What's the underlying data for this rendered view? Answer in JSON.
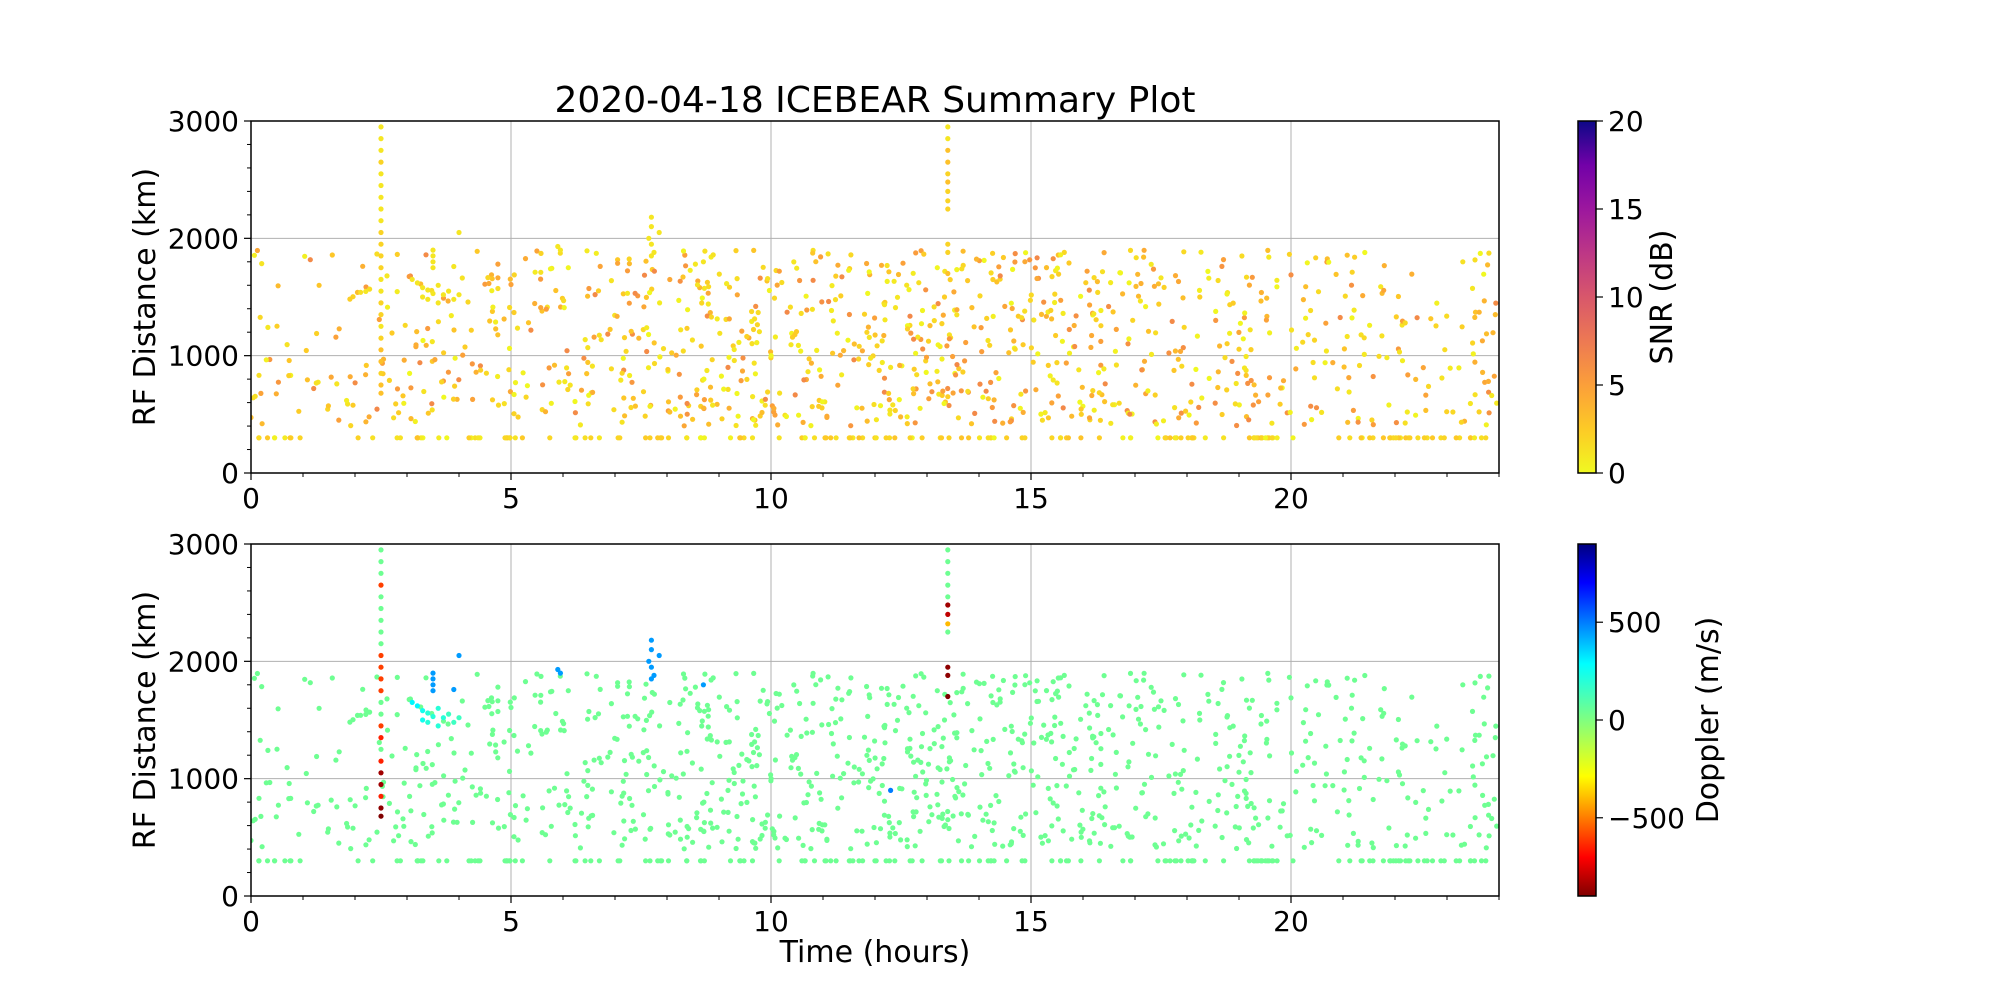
{
  "chart_data": [
    {
      "type": "scatter",
      "title": "2020-04-18 ICEBEAR Summary Plot",
      "xlabel": "",
      "ylabel": "RF Distance (km)",
      "xlim": [
        0,
        24
      ],
      "ylim": [
        0,
        3000
      ],
      "x_ticks": [
        "0",
        "5",
        "10",
        "15",
        "20"
      ],
      "y_ticks": [
        "0",
        "1000",
        "2000",
        "3000"
      ],
      "grid": true,
      "color_variable": "snr",
      "colorbar": {
        "label": "SNR (dB)",
        "colormap": "plasma_r",
        "range": [
          0,
          20
        ],
        "ticks": [
          "0",
          "5",
          "10",
          "15",
          "20"
        ]
      },
      "points": "same as panel 2 (shared detections), colored by snr"
    },
    {
      "type": "scatter",
      "title": "",
      "xlabel": "Time (hours)",
      "ylabel": "RF Distance (km)",
      "xlim": [
        0,
        24
      ],
      "ylim": [
        0,
        3000
      ],
      "x_ticks": [
        "0",
        "5",
        "10",
        "15",
        "20"
      ],
      "y_ticks": [
        "0",
        "1000",
        "2000",
        "3000"
      ],
      "grid": true,
      "color_variable": "doppler",
      "colorbar": {
        "label": "Doppler (m/s)",
        "colormap": "jet_r",
        "range": [
          -900,
          900
        ],
        "ticks": [
          "−500",
          "0",
          "500"
        ],
        "tick_values": [
          -500,
          0,
          500
        ]
      },
      "columns": [
        "time_h",
        "range_km",
        "snr_db",
        "doppler_ms"
      ],
      "points": [
        [
          2.5,
          2950,
          1,
          40
        ],
        [
          2.5,
          2850,
          1,
          40
        ],
        [
          2.5,
          2750,
          1,
          40
        ],
        [
          2.5,
          2650,
          2,
          -600
        ],
        [
          2.5,
          2550,
          1,
          40
        ],
        [
          2.5,
          2450,
          1,
          40
        ],
        [
          2.5,
          2350,
          1,
          40
        ],
        [
          2.5,
          2250,
          1,
          40
        ],
        [
          2.5,
          2150,
          1,
          40
        ],
        [
          2.5,
          2050,
          2,
          -600
        ],
        [
          2.5,
          1950,
          2,
          -600
        ],
        [
          2.5,
          1850,
          2,
          -600
        ],
        [
          2.5,
          1750,
          2,
          -600
        ],
        [
          2.5,
          1650,
          1,
          40
        ],
        [
          2.5,
          1550,
          1,
          40
        ],
        [
          2.5,
          1450,
          2,
          -600
        ],
        [
          2.5,
          1350,
          2,
          -650
        ],
        [
          2.5,
          1250,
          1,
          40
        ],
        [
          2.5,
          1150,
          2,
          -650
        ],
        [
          2.5,
          1050,
          3,
          -850
        ],
        [
          2.5,
          950,
          3,
          -850
        ],
        [
          2.5,
          850,
          2,
          -650
        ],
        [
          2.5,
          750,
          3,
          -880
        ],
        [
          2.5,
          680,
          3,
          -900
        ],
        [
          13.4,
          2950,
          1,
          40
        ],
        [
          13.4,
          2850,
          1,
          40
        ],
        [
          13.4,
          2750,
          3,
          40
        ],
        [
          13.4,
          2650,
          3,
          40
        ],
        [
          13.4,
          2550,
          2,
          40
        ],
        [
          13.4,
          2480,
          3,
          -850
        ],
        [
          13.4,
          2400,
          2,
          -800
        ],
        [
          13.4,
          2320,
          2,
          -400
        ],
        [
          13.4,
          2250,
          2,
          40
        ],
        [
          13.4,
          1950,
          2,
          -880
        ],
        [
          13.4,
          1880,
          2,
          -880
        ],
        [
          13.4,
          1700,
          3,
          -900
        ],
        [
          3.5,
          1900,
          1,
          450
        ],
        [
          3.5,
          1850,
          1,
          450
        ],
        [
          3.5,
          1800,
          1,
          450
        ],
        [
          3.5,
          1750,
          1,
          450
        ],
        [
          3.9,
          1760,
          1,
          450
        ],
        [
          4.0,
          2050,
          1,
          450
        ],
        [
          3.1,
          1650,
          1,
          300
        ],
        [
          3.2,
          1620,
          1,
          300
        ],
        [
          3.3,
          1580,
          1,
          250
        ],
        [
          3.3,
          1500,
          1,
          250
        ],
        [
          3.4,
          1560,
          1,
          200
        ],
        [
          3.4,
          1480,
          1,
          200
        ],
        [
          3.5,
          1530,
          1,
          200
        ],
        [
          3.6,
          1600,
          1,
          200
        ],
        [
          3.6,
          1450,
          1,
          200
        ],
        [
          3.7,
          1520,
          1,
          200
        ],
        [
          3.8,
          1550,
          1,
          150
        ],
        [
          3.9,
          1480,
          1,
          150
        ],
        [
          4.0,
          1520,
          1,
          150
        ],
        [
          5.9,
          1930,
          1,
          450
        ],
        [
          5.95,
          1900,
          1,
          450
        ],
        [
          8.7,
          1800,
          1,
          450
        ],
        [
          7.7,
          2180,
          1,
          450
        ],
        [
          7.7,
          2100,
          1,
          450
        ],
        [
          7.65,
          2000,
          1,
          450
        ],
        [
          7.7,
          1950,
          1,
          450
        ],
        [
          7.75,
          1880,
          1,
          450
        ],
        [
          7.7,
          1850,
          1,
          450
        ],
        [
          7.85,
          2050,
          1,
          450
        ],
        [
          12.3,
          900,
          1,
          500
        ]
      ],
      "scatter_background": {
        "range_km_min": 300,
        "range_km_max": 1900,
        "doppler_ms": 40,
        "snr_db_typical": "0 to 5",
        "density_peak_hours": 14,
        "floor_row_range_km": 300
      }
    }
  ]
}
